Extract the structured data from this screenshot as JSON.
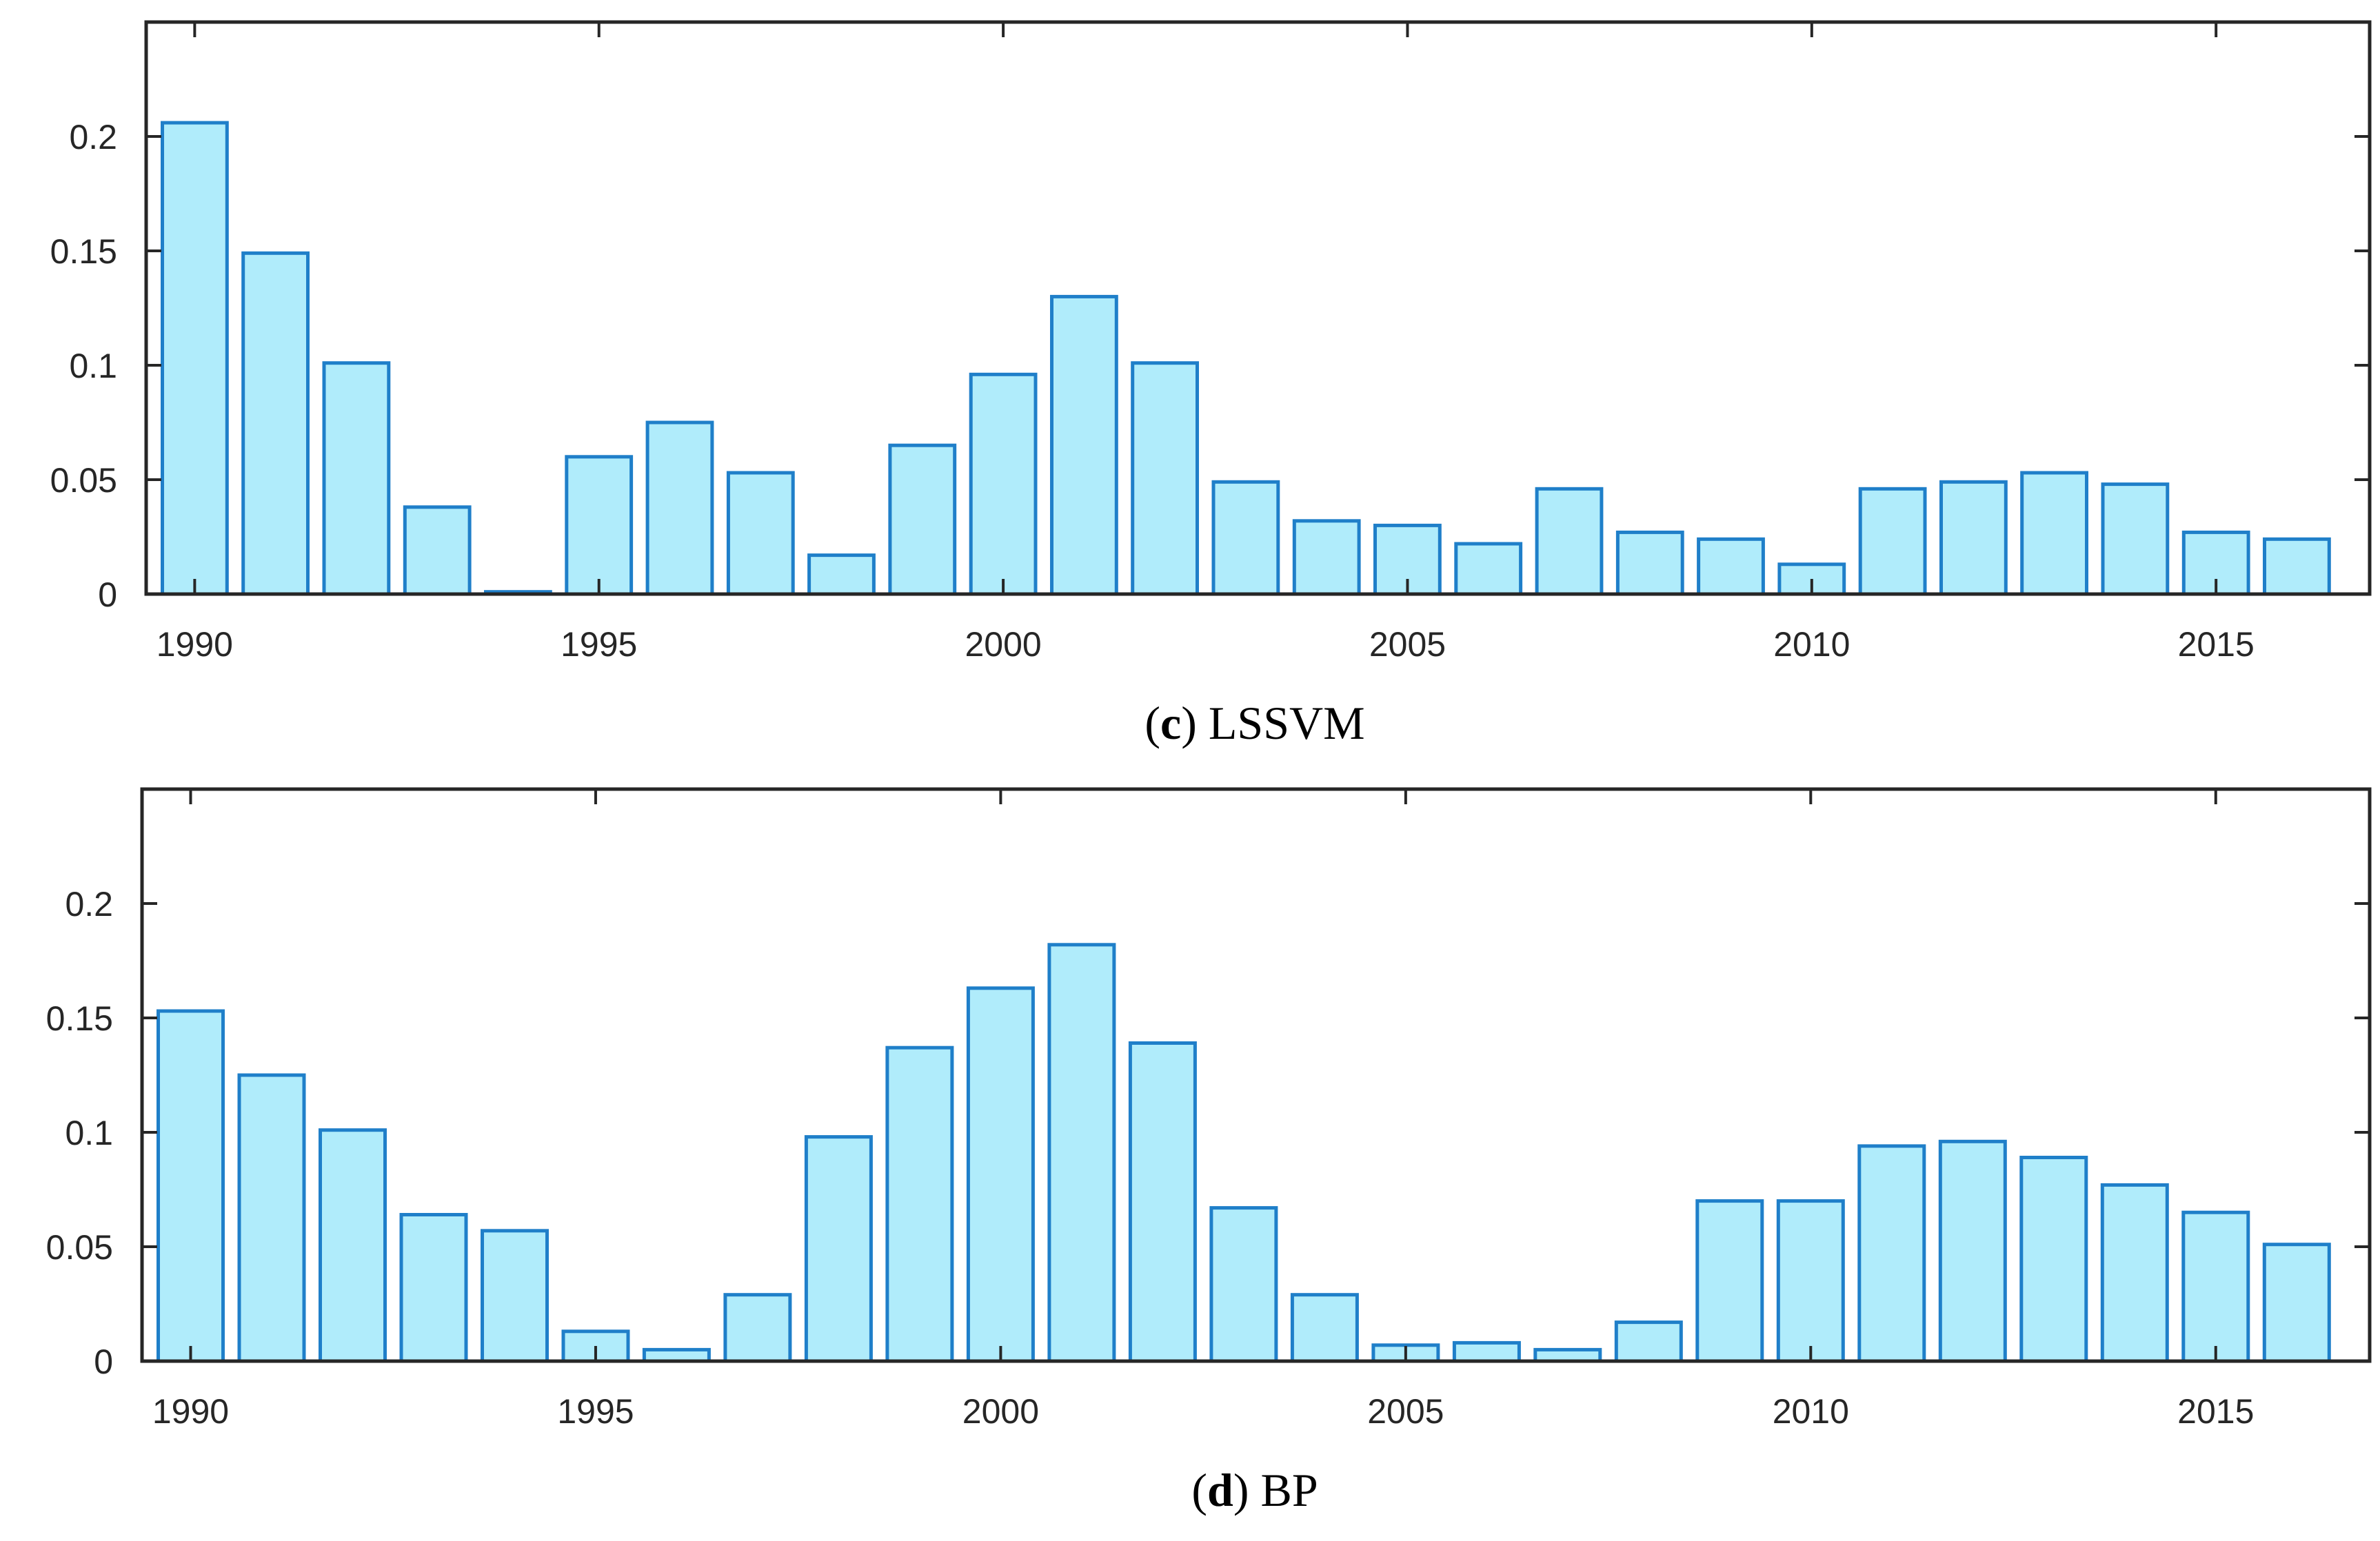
{
  "chart_data": [
    {
      "type": "bar",
      "caption_letter": "c",
      "caption_text": "LSSVM",
      "categories": [
        1990,
        1991,
        1992,
        1993,
        1994,
        1995,
        1996,
        1997,
        1998,
        1999,
        2000,
        2001,
        2002,
        2003,
        2004,
        2005,
        2006,
        2007,
        2008,
        2009,
        2010,
        2011,
        2012,
        2013,
        2014,
        2015,
        2016
      ],
      "values": [
        0.206,
        0.149,
        0.101,
        0.038,
        0.001,
        0.06,
        0.075,
        0.053,
        0.017,
        0.065,
        0.096,
        0.13,
        0.101,
        0.049,
        0.032,
        0.03,
        0.022,
        0.046,
        0.027,
        0.024,
        0.013,
        0.046,
        0.049,
        0.053,
        0.048,
        0.027,
        0.024
      ],
      "xticks": [
        1990,
        1995,
        2000,
        2005,
        2010,
        2015
      ],
      "yticks": [
        0,
        0.05,
        0.1,
        0.15,
        0.2
      ],
      "ytick_labels": [
        "0",
        "0.05",
        "0.1",
        "0.15",
        "0.2"
      ],
      "xlim": [
        1989.4,
        2016.9
      ],
      "ylim": [
        0,
        0.25
      ],
      "colors": {
        "bar_fill": "#b0ecfb",
        "bar_edge": "#1f7fc9"
      }
    },
    {
      "type": "bar",
      "caption_letter": "d",
      "caption_text": "BP",
      "categories": [
        1990,
        1991,
        1992,
        1993,
        1994,
        1995,
        1996,
        1997,
        1998,
        1999,
        2000,
        2001,
        2002,
        2003,
        2004,
        2005,
        2006,
        2007,
        2008,
        2009,
        2010,
        2011,
        2012,
        2013,
        2014,
        2015,
        2016
      ],
      "values": [
        0.153,
        0.125,
        0.101,
        0.064,
        0.057,
        0.013,
        0.005,
        0.029,
        0.098,
        0.137,
        0.163,
        0.182,
        0.139,
        0.067,
        0.029,
        0.007,
        0.008,
        0.005,
        0.017,
        0.07,
        0.07,
        0.094,
        0.096,
        0.089,
        0.077,
        0.065,
        0.051
      ],
      "xticks": [
        1990,
        1995,
        2000,
        2005,
        2010,
        2015
      ],
      "yticks": [
        0,
        0.05,
        0.1,
        0.15,
        0.2
      ],
      "ytick_labels": [
        "0",
        "0.05",
        "0.1",
        "0.15",
        "0.2"
      ],
      "xlim": [
        1989.4,
        2016.9
      ],
      "ylim": [
        0,
        0.25
      ],
      "colors": {
        "bar_fill": "#b0ecfb",
        "bar_edge": "#1f7fc9"
      }
    }
  ]
}
